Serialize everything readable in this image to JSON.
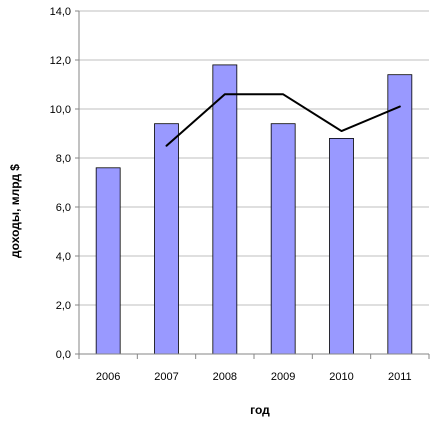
{
  "chart_data": {
    "type": "bar",
    "categories": [
      "2006",
      "2007",
      "2008",
      "2009",
      "2010",
      "2011"
    ],
    "series": [
      {
        "type": "bar",
        "values": [
          7.6,
          9.4,
          11.8,
          9.4,
          8.8,
          11.4
        ]
      },
      {
        "type": "line",
        "x": [
          "2007",
          "2008",
          "2009",
          "2010",
          "2011"
        ],
        "values": [
          8.5,
          10.6,
          10.6,
          9.1,
          10.1
        ]
      }
    ],
    "xlabel": "год",
    "ylabel": "доходы, млрд $",
    "ylim": [
      0,
      14
    ],
    "yticks": [
      "0,0",
      "2,0",
      "4,0",
      "6,0",
      "8,0",
      "10,0",
      "12,0",
      "14,0"
    ],
    "grid": true,
    "legend": "none",
    "colors": {
      "bar_fill": "#9999ff",
      "bar_stroke": "#000000",
      "line": "#000000",
      "grid": "#bfbfbf",
      "axis": "#868686"
    }
  }
}
